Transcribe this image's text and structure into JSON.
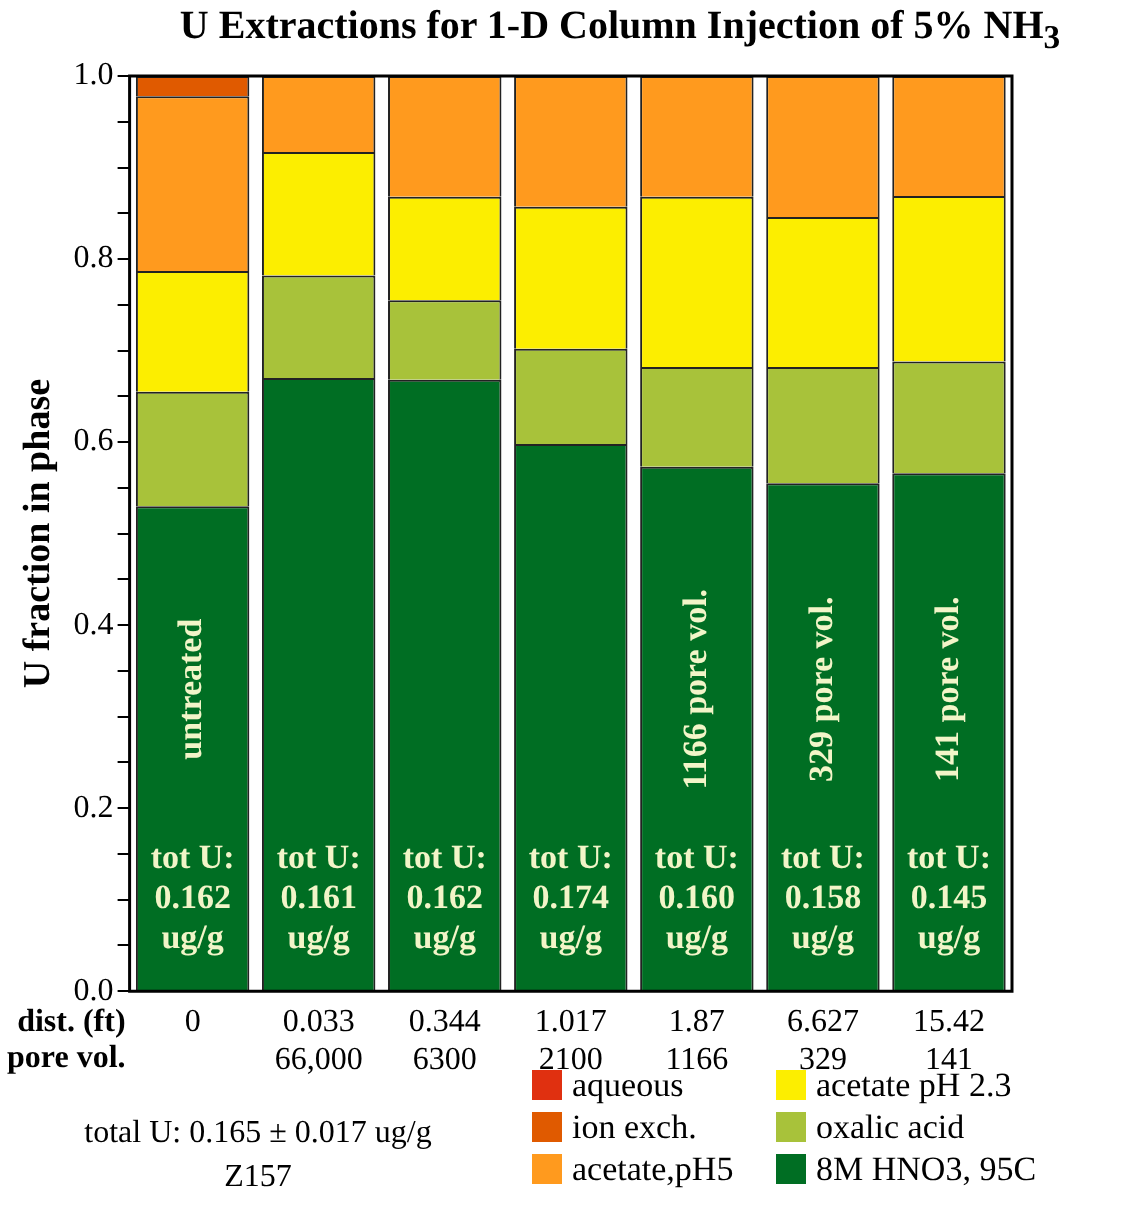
{
  "chart_data": {
    "type": "bar",
    "title": "U Extractions for 1-D Column Injection of 5% NH$_{3}$",
    "ylabel": "U fraction in phase",
    "stacked": true,
    "categories": [
      "0",
      "0.033\n66,000",
      "0.344\n6300",
      "1.017\n2100",
      "1.87\n1166",
      "6.627\n329",
      "15.42\n141"
    ],
    "series": [
      {
        "name": "8M HNO3, 95C",
        "color": "#006e23",
        "values": [
          0.53,
          0.67,
          0.668,
          0.598,
          0.573,
          0.555,
          0.566
        ]
      },
      {
        "name": "oxalic acid",
        "color": "#a8c23a",
        "values": [
          0.125,
          0.112,
          0.087,
          0.104,
          0.109,
          0.127,
          0.122
        ]
      },
      {
        "name": "acetate pH 2.3",
        "color": "#fcee00",
        "values": [
          0.132,
          0.135,
          0.113,
          0.155,
          0.186,
          0.164,
          0.181
        ]
      },
      {
        "name": "acetate,pH5",
        "color": "#ff9a1e",
        "values": [
          0.191,
          0.083,
          0.132,
          0.143,
          0.132,
          0.154,
          0.131
        ]
      },
      {
        "name": "ion exch.",
        "color": "#e05a00",
        "values": [
          0.022,
          0,
          0,
          0,
          0,
          0,
          0
        ]
      },
      {
        "name": "aqueous",
        "color": "#e03010",
        "values": [
          0,
          0,
          0,
          0,
          0,
          0,
          0
        ]
      }
    ],
    "ylim": [
      0,
      1
    ],
    "yticks": [
      {
        "value": 0,
        "label": "0.0"
      },
      {
        "value": 0.05,
        "label": null
      },
      {
        "value": 0.1,
        "label": null
      },
      {
        "value": 0.15,
        "label": null
      },
      {
        "value": 0.2,
        "label": "0.2"
      },
      {
        "value": 0.25,
        "label": null
      },
      {
        "value": 0.3,
        "label": null
      },
      {
        "value": 0.35,
        "label": null
      },
      {
        "value": 0.4,
        "label": "0.4"
      },
      {
        "value": 0.45,
        "label": null
      },
      {
        "value": 0.5,
        "label": null
      },
      {
        "value": 0.55,
        "label": null
      },
      {
        "value": 0.6,
        "label": "0.6"
      },
      {
        "value": 0.65,
        "label": null
      },
      {
        "value": 0.7,
        "label": null
      },
      {
        "value": 0.75,
        "label": null
      },
      {
        "value": 0.8,
        "label": "0.8"
      },
      {
        "value": 0.85,
        "label": null
      },
      {
        "value": 0.9,
        "label": null
      },
      {
        "value": 0.95,
        "label": null
      },
      {
        "value": 1,
        "label": "1.0"
      }
    ],
    "grid": false,
    "legend": "bottom right",
    "annotations": [
      "dist. (ft)",
      "pore vol.",
      "total U: 0.165 ± 0.017 ug/g",
      "Z157",
      "untreated",
      "1166 pore vol.",
      "329 pore vol.",
      "141 pore vol.",
      "tot U:\n0.162\nug/g",
      "tot U:\n0.161\nug/g",
      "tot U:\n0.162\nug/g",
      "tot U:\n0.174\nug/g",
      "tot U:\n0.160\nug/g",
      "tot U:\n0.158\nug/g",
      "tot U:\n0.145\nug/g"
    ]
  }
}
